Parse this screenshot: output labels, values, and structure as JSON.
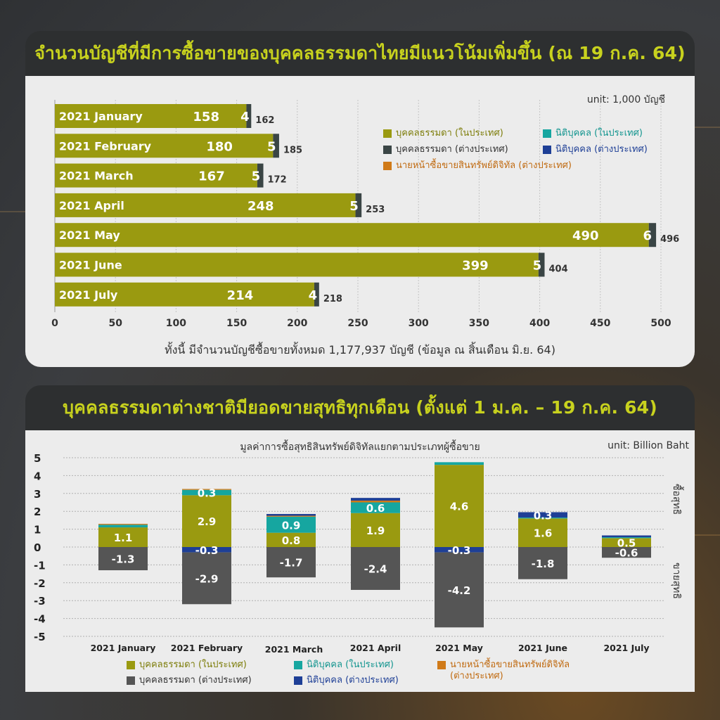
{
  "section1": {
    "title": "จำนวนบัญชีที่มีการซื้อขายของบุคคลธรรมดาไทยมีแนวโน้มเพิ่มขึ้น (ณ 19 ก.ค. 64)",
    "unit": "unit: 1,000 บัญชี",
    "footnote": "ทั้งนี้ มีจำนวนบัญชีซื้อขายทั้งหมด 1,177,937 บัญชี (ข้อมูล ณ สิ้นเดือน มิ.ย. 64)",
    "legend": [
      {
        "label": "บุคคลธรรมดา (ในประเทศ)",
        "color": "#9a9a10",
        "text_color": "#7d7d0a"
      },
      {
        "label": "นิติบุคคล (ในประเทศ)",
        "color": "#16a6a0",
        "text_color": "#13958f"
      },
      {
        "label": "บุคคลธรรมดา (ต่างประเทศ)",
        "color": "#3a4545",
        "text_color": "#333333"
      },
      {
        "label": "นิติบุคคล (ต่างประเทศ)",
        "color": "#1e3f96",
        "text_color": "#1e3f96"
      },
      {
        "label": "นายหน้าซื้อขายสินทรัพย์ดิจิทัล (ต่างประเทศ)",
        "color": "#d07a18",
        "text_color": "#c06a10"
      }
    ]
  },
  "section2": {
    "title": "บุคคลธรรมดาต่างชาติมียอดขายสุทธิทุกเดือน (ตั้งแต่ 1 ม.ค. – 19 ก.ค. 64)",
    "unit": "unit: Billion Baht",
    "buy_label": "ซื้อสุทธิ",
    "sell_label": "ขายสุทธิ",
    "legend": [
      {
        "label": "บุคคลธรรมดา (ในประเทศ)",
        "color": "#9a9a10",
        "text_color": "#7d7d0a"
      },
      {
        "label": "นิติบุคคล (ในประเทศ)",
        "color": "#16a6a0",
        "text_color": "#13958f"
      },
      {
        "label": "นายหน้าซื้อขายสินทรัพย์ดิจิทัล",
        "label2": "(ต่างประเทศ)",
        "color": "#d07a18",
        "text_color": "#c06a10"
      },
      {
        "label": "บุคคลธรรมดา (ต่างประเทศ)",
        "color": "#555555",
        "text_color": "#333333"
      },
      {
        "label": "นิติบุคคล (ต่างประเทศ)",
        "color": "#1e3f96",
        "text_color": "#1e3f96"
      }
    ]
  },
  "chart_data": [
    {
      "type": "bar",
      "orientation": "horizontal",
      "stacked": true,
      "categories": [
        "2021 January",
        "2021 February",
        "2021 March",
        "2021 April",
        "2021 May",
        "2021 June",
        "2021 July"
      ],
      "series": [
        {
          "name": "บุคคลธรรมดา (ในประเทศ)",
          "values": [
            158,
            180,
            167,
            248,
            490,
            399,
            214
          ],
          "color": "#9a9a10"
        },
        {
          "name": "บุคคลธรรมดา (ต่างประเทศ)",
          "values": [
            4,
            5,
            5,
            5,
            6,
            5,
            4
          ],
          "color": "#3a4545"
        }
      ],
      "totals": [
        162,
        185,
        172,
        253,
        496,
        404,
        218
      ],
      "xlim": [
        0,
        500
      ],
      "xticks": [
        0,
        50,
        100,
        150,
        200,
        250,
        300,
        350,
        400,
        450,
        500
      ],
      "legend_position": "top-right",
      "grid": true
    },
    {
      "type": "bar",
      "stacked": true,
      "title": "มูลค่าการซื้อสุทธิสินทรัพย์ดิจิทัลแยกตามประเภทผู้ซื้อขาย",
      "categories": [
        "2021 January",
        "2021 February",
        "2021 March",
        "2021 April",
        "2021 May",
        "2021 June",
        "2021 July"
      ],
      "series": [
        {
          "name": "บุคคลธรรมดา (ในประเทศ)",
          "values": [
            1.1,
            2.9,
            0.8,
            1.9,
            4.6,
            1.6,
            0.5
          ],
          "color": "#9a9a10"
        },
        {
          "name": "นิติบุคคล (ในประเทศ)",
          "values": [
            0.15,
            0.3,
            0.9,
            0.6,
            0.15,
            0.05,
            0.05
          ],
          "color": "#16a6a0"
        },
        {
          "name": "นายหน้าซื้อขายสินทรัพย์ดิจิทัล (ต่างประเทศ)",
          "values": [
            0.05,
            0.05,
            0.05,
            0.1,
            0.0,
            0.0,
            0.0
          ],
          "color": "#d07a18"
        },
        {
          "name": "นิติบุคคล (ต่างประเทศ)",
          "values": [
            0.0,
            -0.3,
            0.1,
            0.15,
            -0.3,
            0.3,
            0.1
          ],
          "color": "#1e3f96"
        },
        {
          "name": "บุคคลธรรมดา (ต่างประเทศ)",
          "values": [
            -1.3,
            -2.9,
            -1.7,
            -2.4,
            -4.2,
            -1.8,
            -0.6
          ],
          "color": "#555555"
        }
      ],
      "data_labels": [
        [
          {
            "series": 0,
            "text": "1.1"
          },
          {
            "series": 4,
            "text": "-1.3"
          }
        ],
        [
          {
            "series": 0,
            "text": "2.9"
          },
          {
            "series": 1,
            "text": "0.3"
          },
          {
            "series": 3,
            "text": "-0.3"
          },
          {
            "series": 4,
            "text": "-2.9"
          }
        ],
        [
          {
            "series": 0,
            "text": "0.8"
          },
          {
            "series": 1,
            "text": "0.9"
          },
          {
            "series": 4,
            "text": "-1.7"
          }
        ],
        [
          {
            "series": 0,
            "text": "1.9"
          },
          {
            "series": 1,
            "text": "0.6"
          },
          {
            "series": 4,
            "text": "-2.4"
          }
        ],
        [
          {
            "series": 0,
            "text": "4.6"
          },
          {
            "series": 3,
            "text": "-0.3"
          },
          {
            "series": 4,
            "text": "-4.2"
          }
        ],
        [
          {
            "series": 0,
            "text": "1.6"
          },
          {
            "series": 3,
            "text": "0.3"
          },
          {
            "series": 4,
            "text": "-1.8"
          }
        ],
        [
          {
            "series": 0,
            "text": "0.5"
          },
          {
            "series": 4,
            "text": "-0.6"
          }
        ]
      ],
      "ylim": [
        -5,
        5
      ],
      "yticks": [
        5,
        4,
        3,
        2,
        1,
        0,
        -1,
        -2,
        -3,
        -4,
        -5
      ],
      "legend_position": "bottom",
      "grid": true
    }
  ]
}
